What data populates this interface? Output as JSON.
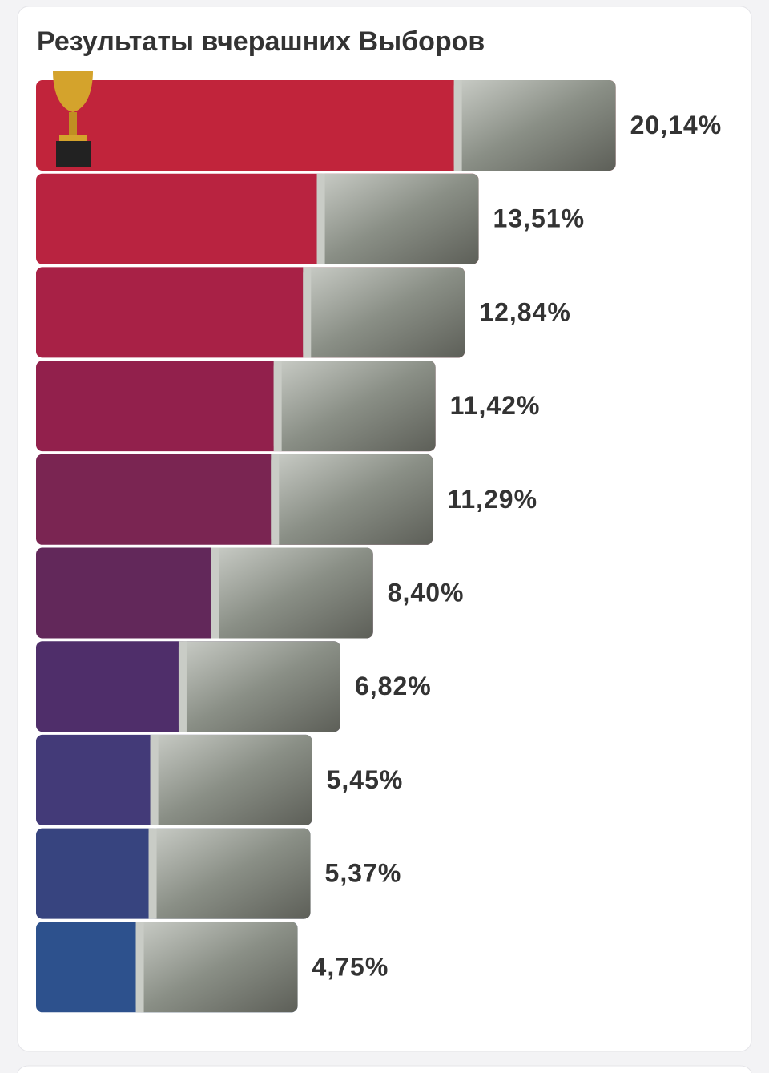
{
  "chart_data": {
    "type": "bar",
    "orientation": "horizontal",
    "title": "Результаты вчерашних Выборов",
    "values": [
      20.14,
      13.51,
      12.84,
      11.42,
      11.29,
      8.4,
      6.82,
      5.45,
      5.37,
      4.75
    ],
    "value_labels": [
      "20,14%",
      "13,51%",
      "12,84%",
      "11,42%",
      "11,29%",
      "8,40%",
      "6,82%",
      "5,45%",
      "5,37%",
      "4,75%"
    ],
    "colors": [
      "#c1243b",
      "#b92340",
      "#a82146",
      "#92204c",
      "#7a2552",
      "#62285a",
      "#4f2e6a",
      "#433a78",
      "#37447f",
      "#2d518d"
    ]
  }
}
